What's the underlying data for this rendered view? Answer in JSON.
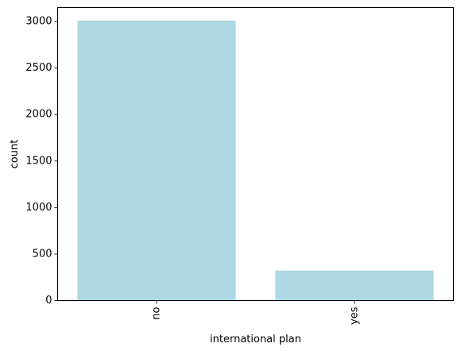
{
  "chart_data": {
    "type": "bar",
    "title": "",
    "xlabel": "international plan",
    "ylabel": "count",
    "categories": [
      "no",
      "yes"
    ],
    "values": [
      3010,
      323
    ],
    "ylim": [
      0,
      3150
    ],
    "yticks": [
      0,
      500,
      1000,
      1500,
      2000,
      2500,
      3000
    ],
    "grid": false,
    "legend": "none",
    "bar_color": "#add8e6",
    "x_tick_rotation": 90
  }
}
